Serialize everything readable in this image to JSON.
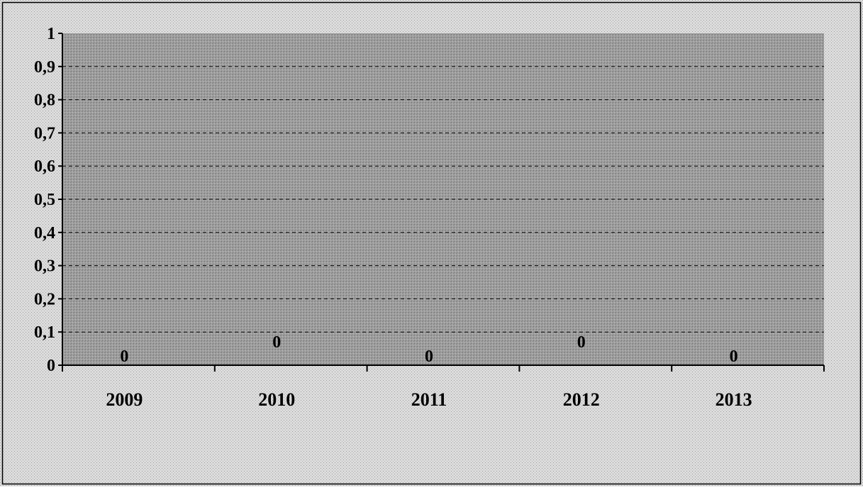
{
  "chart_data": {
    "type": "bar",
    "categories": [
      "2009",
      "2010",
      "2011",
      "2012",
      "2013"
    ],
    "values": [
      0,
      0,
      0,
      0,
      0
    ],
    "data_labels": [
      "0",
      "0",
      "0",
      "0",
      "0"
    ],
    "yticks": [
      "0",
      "0,1",
      "0,2",
      "0,3",
      "0,4",
      "0,5",
      "0,6",
      "0,7",
      "0,8",
      "0,9",
      "1"
    ],
    "ylim": [
      0,
      1
    ],
    "grid": true,
    "title": "",
    "xlabel": "",
    "ylabel": ""
  },
  "colors": {
    "page_bg": "#d6d6d6",
    "plot_bg": "#9a9a9a",
    "gridline": "#000000",
    "axis": "#000000"
  }
}
